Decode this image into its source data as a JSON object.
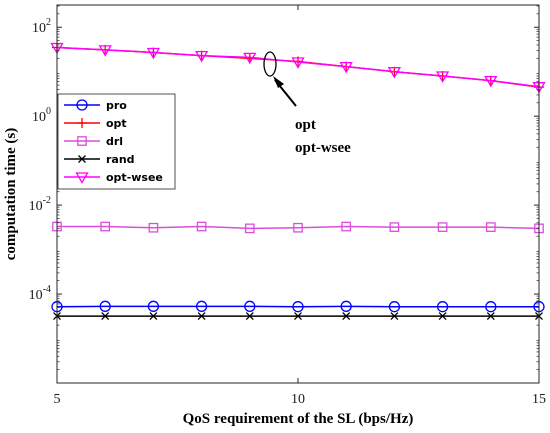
{
  "chart_data": {
    "type": "line",
    "xlabel": "QoS requirement of the SL (bps/Hz)",
    "ylabel": "computation time (s)",
    "xlim": [
      5,
      15
    ],
    "ylim_log10": [
      -6,
      2.5
    ],
    "y_scale": "log",
    "grid": false,
    "legend_placement": "middle-left",
    "x_ticks": [
      5,
      10,
      15
    ],
    "y_ticks": [
      {
        "base": "10",
        "exp": "2",
        "value": 100
      },
      {
        "base": "10",
        "exp": "0",
        "value": 1
      },
      {
        "base": "10",
        "exp": "-2",
        "value": 0.01
      },
      {
        "base": "10",
        "exp": "-4",
        "value": 0.0001
      }
    ],
    "x": [
      5,
      6,
      7,
      8,
      9,
      10,
      11,
      12,
      13,
      14,
      15
    ],
    "series": [
      {
        "name": "pro",
        "color": "#0000ff",
        "marker": "circle",
        "values": [
          5.2e-05,
          5.3e-05,
          5.3e-05,
          5.3e-05,
          5.3e-05,
          5.2e-05,
          5.3e-05,
          5.2e-05,
          5.2e-05,
          5.2e-05,
          5.2e-05
        ]
      },
      {
        "name": "opt",
        "color": "#ff0000",
        "marker": "plus",
        "values": [
          35,
          31,
          27,
          23,
          20,
          17,
          13,
          10,
          8,
          6.3,
          4.5
        ]
      },
      {
        "name": "drl",
        "color": "#d94fd9",
        "marker": "square",
        "values": [
          0.0033,
          0.0033,
          0.0031,
          0.0033,
          0.003,
          0.0031,
          0.0033,
          0.0032,
          0.0032,
          0.0032,
          0.003
        ]
      },
      {
        "name": "rand",
        "color": "#000000",
        "marker": "x",
        "values": [
          3.2e-05,
          3.2e-05,
          3.2e-05,
          3.2e-05,
          3.2e-05,
          3.2e-05,
          3.2e-05,
          3.2e-05,
          3.2e-05,
          3.2e-05,
          3.2e-05
        ]
      },
      {
        "name": "opt-wsee",
        "color": "#ff00ff",
        "marker": "triangle-down",
        "values": [
          35,
          31,
          27,
          23,
          21,
          16.5,
          13,
          10,
          8,
          6.3,
          4.6
        ]
      }
    ],
    "annotation": {
      "lines": [
        "opt",
        "opt-wsee"
      ],
      "at_x": 9.5
    }
  }
}
